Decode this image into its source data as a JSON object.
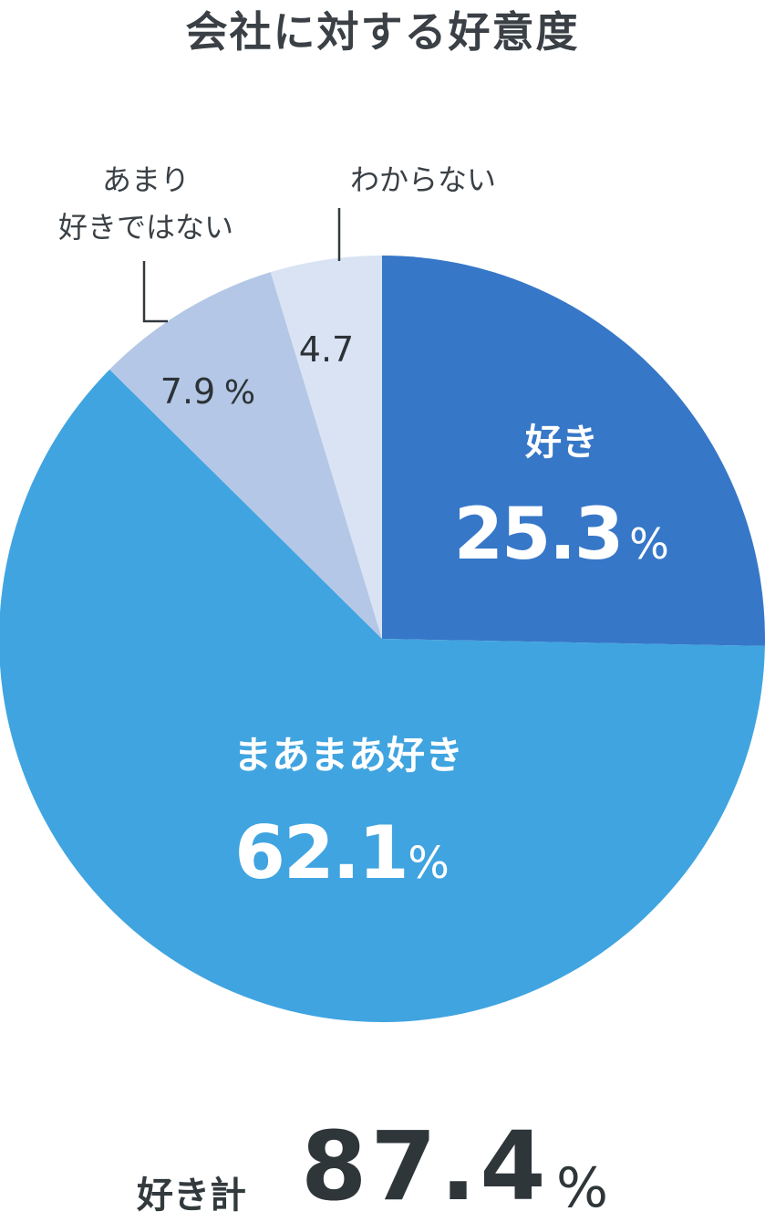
{
  "chart_data": {
    "type": "pie",
    "title": "会社に対する好意度",
    "start": "12 o'clock",
    "direction": "clockwise",
    "slices": [
      {
        "name": "好き",
        "value": 25.3,
        "label": "25.3",
        "unit": "%",
        "color": "#3677c8"
      },
      {
        "name": "まあまあ好き",
        "value": 62.1,
        "label": "62.1",
        "unit": "%",
        "color": "#40a4e0"
      },
      {
        "name_lines": [
          "あまり",
          "好きではない"
        ],
        "value": 7.9,
        "label": "7.9",
        "unit": "%",
        "color": "#b4c7e6"
      },
      {
        "name": "わからない",
        "value": 4.7,
        "label": "4.7",
        "unit": "",
        "color": "#d9e3f3"
      }
    ],
    "total": {
      "label": "好き計",
      "value": "87.4",
      "unit": "%"
    }
  }
}
